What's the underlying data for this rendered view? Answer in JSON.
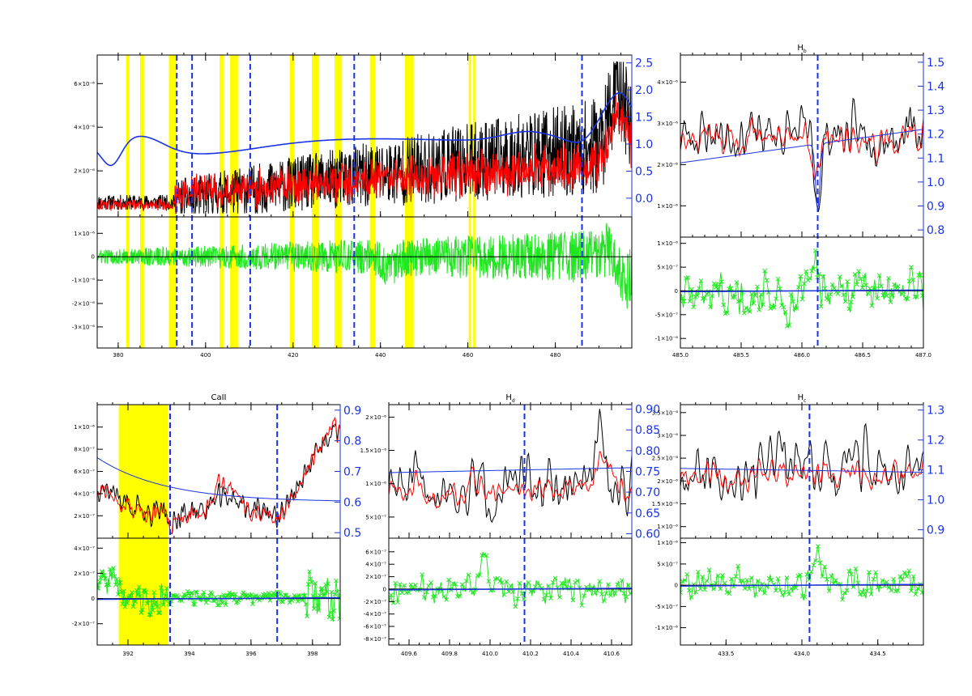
{
  "colors": {
    "observed": "#000000",
    "model": "#ff0000",
    "continuum": "#1a33e6",
    "residual": "#22e622",
    "mask": "#ffff00",
    "line_marker": "#1a33e6",
    "zero_line": "#000000"
  },
  "chart_data": [
    {
      "id": "overview",
      "type": "line",
      "title": "",
      "main_ytick_labels": [
        "2×10⁻⁶",
        "4×10⁻⁶",
        "6×10⁻⁶"
      ],
      "main_yticks": [
        2,
        4,
        6
      ],
      "main_ylim": [
        0,
        7.2
      ],
      "right_ytick_labels": [
        "0.0",
        "0.5",
        "1.0",
        "1.5",
        "2.0",
        "2.5"
      ],
      "right_ylim": [
        -0.3,
        2.6
      ],
      "resid_ytick_labels": [
        "1×10⁻⁶",
        "0",
        "-1×10⁻⁶",
        "-2×10⁻⁶",
        "-3×10⁻⁶"
      ],
      "resid_yticks": [
        1,
        0,
        -1,
        -2,
        -3
      ],
      "resid_ylim": [
        -3.8,
        1.6
      ],
      "xtick_labels": [
        "380",
        "400",
        "420",
        "440",
        "460",
        "480"
      ],
      "xticks": [
        380,
        400,
        420,
        440,
        460,
        480
      ],
      "xlim": [
        375.2,
        497.5
      ],
      "line_markers": [
        393.4,
        396.9,
        410.2,
        434.0,
        486.1
      ],
      "masked_ranges": [
        [
          381.8,
          382.6
        ],
        [
          385.0,
          386.0
        ],
        [
          391.6,
          393.2
        ],
        [
          403.2,
          404.2
        ],
        [
          405.6,
          407.5
        ],
        [
          419.3,
          420.3
        ],
        [
          424.3,
          426.0
        ],
        [
          429.5,
          431.2
        ],
        [
          437.6,
          438.8
        ],
        [
          445.6,
          447.6
        ],
        [
          460.2,
          460.7
        ],
        [
          461.2,
          461.7
        ]
      ]
    },
    {
      "id": "hb",
      "type": "line",
      "title": "H",
      "title_subscript": "b",
      "main_ytick_labels": [
        "1×10⁻⁶",
        "2×10⁻⁶",
        "3×10⁻⁶",
        "4×10⁻⁶"
      ],
      "main_yticks": [
        1,
        2,
        3,
        4
      ],
      "main_ylim": [
        0.3,
        4.6
      ],
      "right_ytick_labels": [
        "0.8",
        "0.9",
        "1.0",
        "1.1",
        "1.2",
        "1.3",
        "1.4",
        "1.5"
      ],
      "right_ylim": [
        0.78,
        1.52
      ],
      "resid_ytick_labels": [
        "1×10⁻⁶",
        "5×10⁻⁷",
        "0",
        "-5×10⁻⁷",
        "-1×10⁻⁶"
      ],
      "resid_yticks": [
        1,
        0.5,
        0,
        -0.5,
        -1
      ],
      "resid_ylim": [
        -1.15,
        1.08
      ],
      "xtick_labels": [
        "485.0",
        "485.5",
        "486.0",
        "486.5",
        "487.0"
      ],
      "xticks": [
        485.0,
        485.5,
        486.0,
        486.5,
        487.0
      ],
      "xlim": [
        485.0,
        487.0
      ],
      "line_markers": [
        486.13
      ],
      "masked_ranges": []
    },
    {
      "id": "caii",
      "type": "line",
      "title": "CaII",
      "main_ytick_labels": [
        "2×10⁻⁷",
        "4×10⁻⁷",
        "6×10⁻⁷",
        "8×10⁻⁷",
        "1×10⁻⁶"
      ],
      "main_yticks": [
        2,
        4,
        6,
        8,
        10
      ],
      "main_ylim": [
        0.2,
        11.8
      ],
      "right_ytick_labels": [
        "0.5",
        "0.6",
        "0.7",
        "0.8",
        "0.9"
      ],
      "right_ylim": [
        0.49,
        0.91
      ],
      "resid_ytick_labels": [
        "4×10⁻⁷",
        "2×10⁻⁷",
        "0",
        "-2×10⁻⁷"
      ],
      "resid_yticks": [
        4,
        2,
        0,
        -2
      ],
      "resid_ylim": [
        -3.5,
        4.6
      ],
      "xtick_labels": [
        "392",
        "394",
        "396",
        "398"
      ],
      "xticks": [
        392,
        394,
        396,
        398
      ],
      "xlim": [
        391.0,
        398.9
      ],
      "line_markers": [
        393.37,
        396.85
      ],
      "masked_ranges": [
        [
          391.7,
          393.3
        ]
      ]
    },
    {
      "id": "hd",
      "type": "line",
      "title": "H",
      "title_subscript": "d",
      "main_ytick_labels": [
        "5×10⁻⁷",
        "1×10⁻⁶",
        "1.5×10⁻⁶",
        "2×10⁻⁶"
      ],
      "main_yticks": [
        0.5,
        1.0,
        1.5,
        2.0
      ],
      "main_ylim": [
        0.22,
        2.15
      ],
      "right_ytick_labels": [
        "0.60",
        "0.65",
        "0.70",
        "0.75",
        "0.80",
        "0.85",
        "0.90"
      ],
      "right_ylim": [
        0.595,
        0.905
      ],
      "resid_ytick_labels": [
        "6×10⁻⁷",
        "4×10⁻⁷",
        "2×10⁻⁷",
        "0",
        "-2×10⁻⁷",
        "-4×10⁻⁷",
        "-6×10⁻⁷",
        "-8×10⁻⁷"
      ],
      "resid_yticks": [
        6,
        4,
        2,
        0,
        -2,
        -4,
        -6,
        -8
      ],
      "resid_ylim": [
        -8.6,
        7.8
      ],
      "xtick_labels": [
        "409.6",
        "409.8",
        "410.0",
        "410.2",
        "410.4",
        "410.6"
      ],
      "xticks": [
        409.6,
        409.8,
        410.0,
        410.2,
        410.4,
        410.6
      ],
      "xlim": [
        409.5,
        410.7
      ],
      "line_markers": [
        410.17
      ],
      "masked_ranges": []
    },
    {
      "id": "hc",
      "type": "line",
      "title": "H",
      "title_subscript": "c",
      "main_ytick_labels": [
        "1×10⁻⁶",
        "1.5×10⁻⁶",
        "2×10⁻⁶",
        "2.5×10⁻⁶",
        "3×10⁻⁶",
        "3.5×10⁻⁶"
      ],
      "main_yticks": [
        1.0,
        1.5,
        2.0,
        2.5,
        3.0,
        3.5
      ],
      "main_ylim": [
        0.8,
        3.62
      ],
      "right_ytick_labels": [
        "0.9",
        "1.0",
        "1.1",
        "1.2",
        "1.3"
      ],
      "right_ylim": [
        0.88,
        1.31
      ],
      "resid_ytick_labels": [
        "1×10⁻⁶",
        "5×10⁻⁷",
        "0",
        "-5×10⁻⁷",
        "-1×10⁻⁶"
      ],
      "resid_yticks": [
        1,
        0.5,
        0,
        -0.5,
        -1
      ],
      "resid_ylim": [
        -1.35,
        1.05
      ],
      "xtick_labels": [
        "433.5",
        "434.0",
        "434.5"
      ],
      "xticks": [
        433.5,
        434.0,
        434.5
      ],
      "xlim": [
        433.2,
        434.8
      ],
      "line_markers": [
        434.05
      ],
      "masked_ranges": []
    }
  ]
}
